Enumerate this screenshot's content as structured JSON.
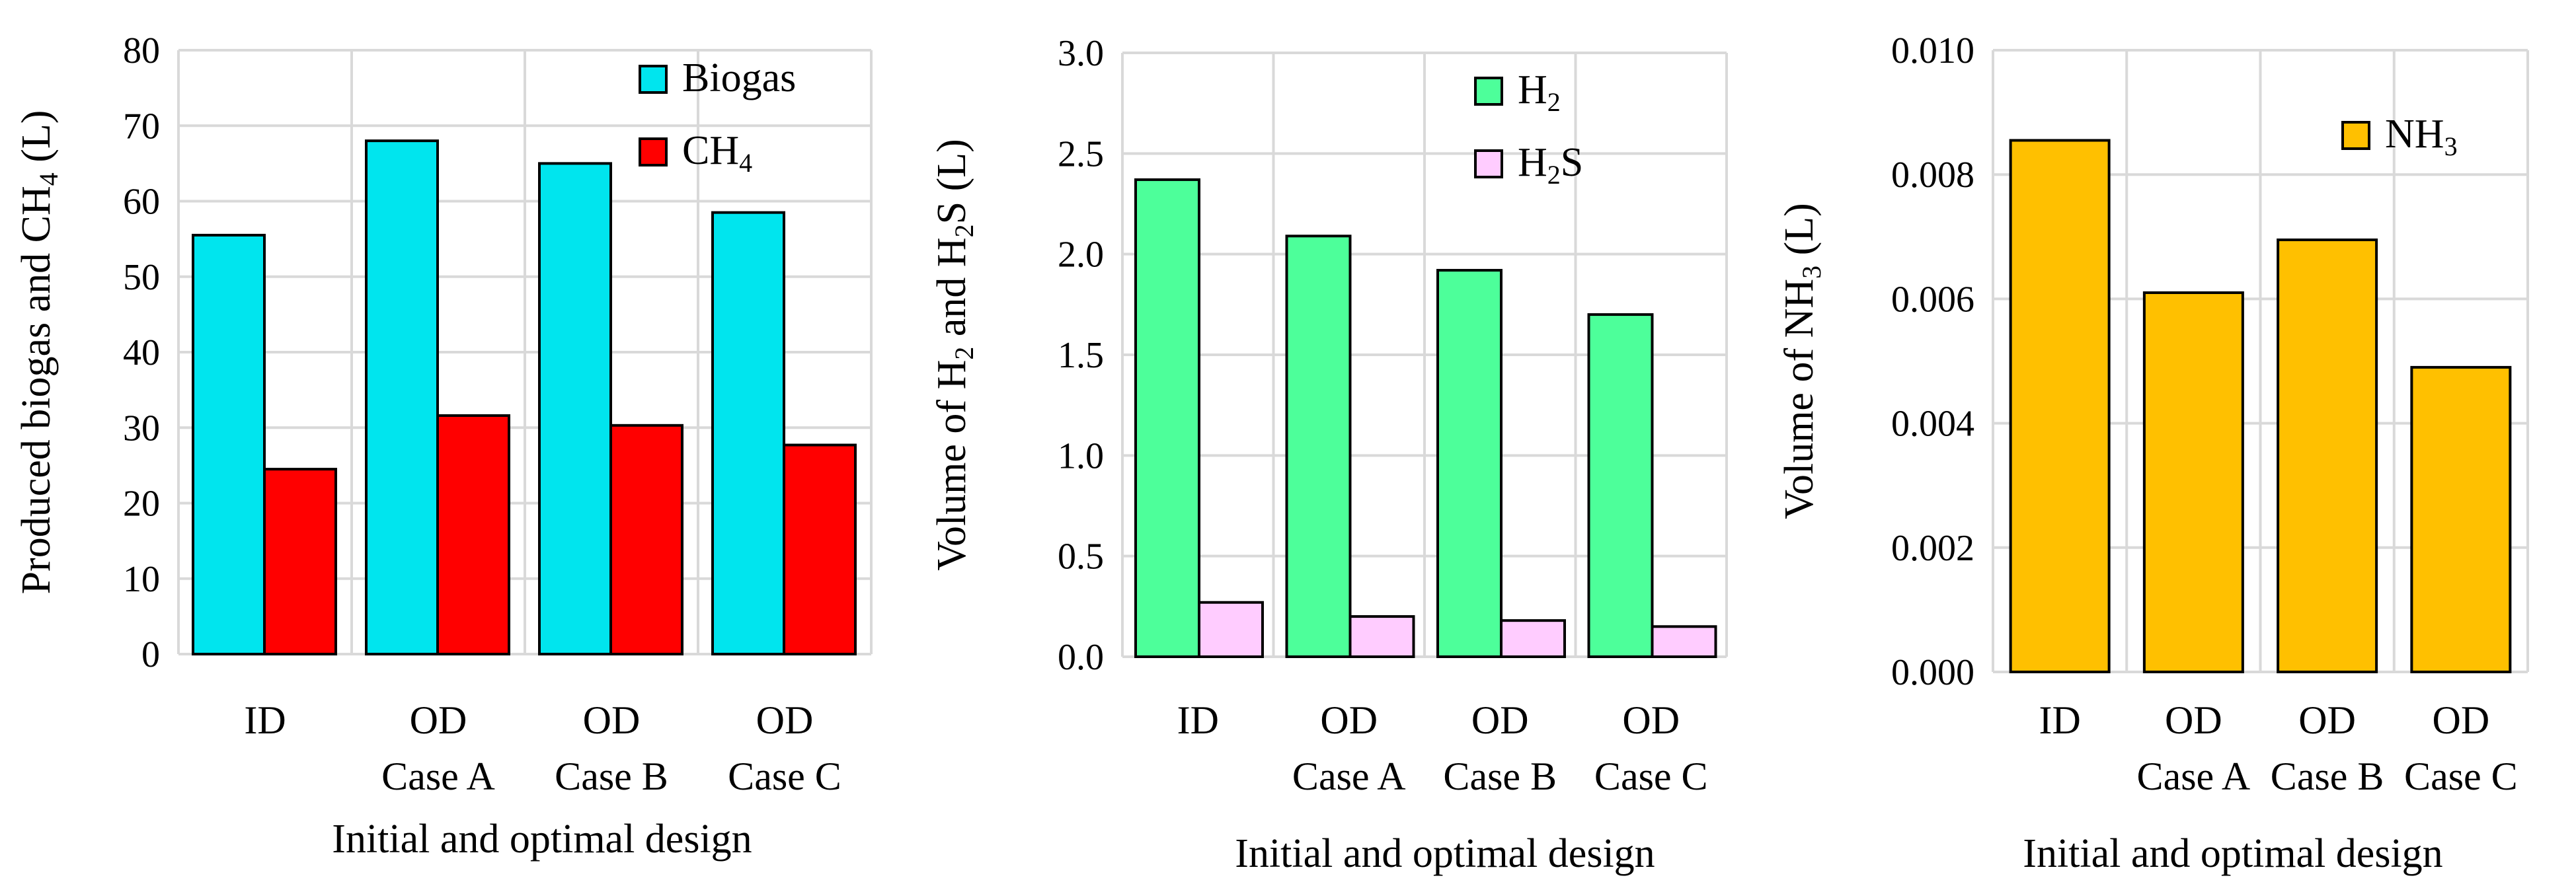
{
  "chart_data": [
    {
      "type": "bar",
      "title": "",
      "xlabel": "Initial and optimal design",
      "ylabel": "Produced biogas and CH4 (L)",
      "ylabel_parts": [
        {
          "text": "Produced biogas and CH",
          "sub": false
        },
        {
          "text": "4",
          "sub": true
        },
        {
          "text": " (L)",
          "sub": false
        }
      ],
      "ylim": [
        0,
        80
      ],
      "yticks": [
        "0",
        "10",
        "20",
        "30",
        "40",
        "50",
        "60",
        "70",
        "80"
      ],
      "categories": [
        [
          "ID"
        ],
        [
          "OD",
          "Case A"
        ],
        [
          "OD",
          "Case B"
        ],
        [
          "OD",
          "Case C"
        ]
      ],
      "legend_position": "top-right",
      "series": [
        {
          "name": "Biogas",
          "legend": [
            {
              "text": "Biogas",
              "sub": false
            }
          ],
          "color": "#00e5ee",
          "values": [
            55.5,
            68.0,
            65.0,
            58.5
          ]
        },
        {
          "name": "CH4",
          "legend": [
            {
              "text": "CH",
              "sub": false
            },
            {
              "text": "4",
              "sub": true
            }
          ],
          "color": "#ff0000",
          "values": [
            24.5,
            31.6,
            30.3,
            27.7
          ]
        }
      ]
    },
    {
      "type": "bar",
      "title": "",
      "xlabel": "Initial and optimal design",
      "ylabel": "Volume of H2 and H2S (L)",
      "ylabel_parts": [
        {
          "text": "Volume of H",
          "sub": false
        },
        {
          "text": "2",
          "sub": true
        },
        {
          "text": " and H",
          "sub": false
        },
        {
          "text": "2",
          "sub": true
        },
        {
          "text": "S (L)",
          "sub": false
        }
      ],
      "ylim": [
        0,
        3.0
      ],
      "yticks": [
        "0.0",
        "0.5",
        "1.0",
        "1.5",
        "2.0",
        "2.5",
        "3.0"
      ],
      "categories": [
        [
          "ID"
        ],
        [
          "OD",
          "Case A"
        ],
        [
          "OD",
          "Case B"
        ],
        [
          "OD",
          "Case C"
        ]
      ],
      "legend_position": "top-right",
      "series": [
        {
          "name": "H2",
          "legend": [
            {
              "text": "H",
              "sub": false
            },
            {
              "text": "2",
              "sub": true
            }
          ],
          "color": "#4dff9a",
          "values": [
            2.37,
            2.09,
            1.92,
            1.7
          ]
        },
        {
          "name": "H2S",
          "legend": [
            {
              "text": "H",
              "sub": false
            },
            {
              "text": "2",
              "sub": true
            },
            {
              "text": "S",
              "sub": false
            }
          ],
          "color": "#ffccff",
          "values": [
            0.27,
            0.2,
            0.18,
            0.15
          ]
        }
      ]
    },
    {
      "type": "bar",
      "title": "",
      "xlabel": "Initial and optimal design",
      "ylabel": "Volume of  NH3 (L)",
      "ylabel_parts": [
        {
          "text": "Volume of  NH",
          "sub": false
        },
        {
          "text": "3",
          "sub": true
        },
        {
          "text": " (L)",
          "sub": false
        }
      ],
      "ylim": [
        0,
        0.01
      ],
      "yticks": [
        "0.000",
        "0.002",
        "0.004",
        "0.006",
        "0.008",
        "0.010"
      ],
      "categories": [
        [
          "ID"
        ],
        [
          "OD",
          "Case A"
        ],
        [
          "OD",
          "Case B"
        ],
        [
          "OD",
          "Case C"
        ]
      ],
      "legend_position": "top-right",
      "series": [
        {
          "name": "NH3",
          "legend": [
            {
              "text": "NH",
              "sub": false
            },
            {
              "text": "3",
              "sub": true
            }
          ],
          "color": "#ffc000",
          "values": [
            0.00855,
            0.0061,
            0.00695,
            0.0049
          ]
        }
      ]
    }
  ]
}
